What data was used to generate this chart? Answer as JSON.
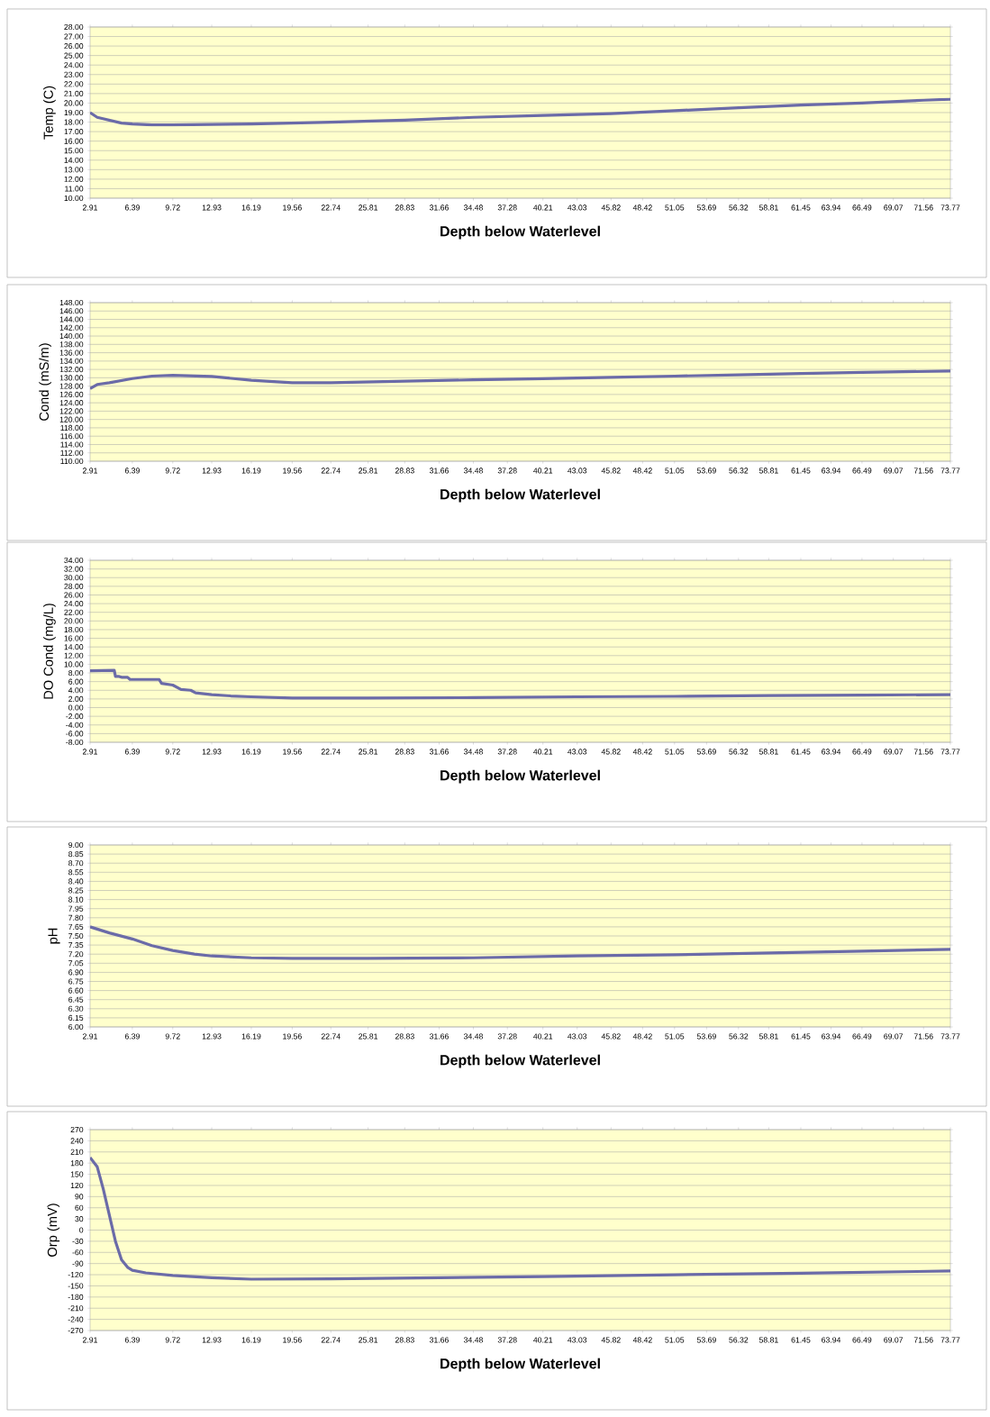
{
  "chart_data": [
    {
      "type": "line",
      "xlabel": "Depth below Waterlevel",
      "ylabel": "Temp (C)",
      "grid": "y",
      "x": [
        2.91,
        3.5,
        4.5,
        5.5,
        6.39,
        8,
        9.72,
        16.19,
        22.74,
        28.83,
        34.48,
        40.21,
        45.82,
        51.05,
        56.32,
        61.45,
        66.49,
        71.56,
        73.77
      ],
      "series": [
        {
          "color": "#6b6ba8",
          "values": [
            19.0,
            18.5,
            18.2,
            17.9,
            17.8,
            17.7,
            17.7,
            17.8,
            18.0,
            18.2,
            18.5,
            18.7,
            18.9,
            19.2,
            19.5,
            19.8,
            20.0,
            20.3,
            20.4
          ]
        }
      ],
      "xlim": [
        2.91,
        73.77
      ],
      "xticks": [
        2.91,
        6.39,
        9.72,
        12.93,
        16.19,
        19.56,
        22.74,
        25.81,
        28.83,
        31.66,
        34.48,
        37.28,
        40.21,
        43.03,
        45.82,
        48.42,
        51.05,
        53.69,
        56.32,
        58.81,
        61.45,
        63.94,
        66.49,
        69.07,
        71.56,
        73.77
      ],
      "ylim": [
        10,
        28
      ],
      "yticks": [
        {
          "value": 10,
          "label": "10.00"
        },
        {
          "value": 11,
          "label": "11.00"
        },
        {
          "value": 12,
          "label": "12.00"
        },
        {
          "value": 13,
          "label": "13.00"
        },
        {
          "value": 14,
          "label": "14.00"
        },
        {
          "value": 15,
          "label": "15.00"
        },
        {
          "value": 16,
          "label": "16.00"
        },
        {
          "value": 17,
          "label": "17.00"
        },
        {
          "value": 18,
          "label": "18.00"
        },
        {
          "value": 19,
          "label": "19.00"
        },
        {
          "value": 20,
          "label": "20.00"
        },
        {
          "value": 21,
          "label": "21.00"
        },
        {
          "value": 22,
          "label": "22.00"
        },
        {
          "value": 23,
          "label": "23.00"
        },
        {
          "value": 24,
          "label": "24.00"
        },
        {
          "value": 25,
          "label": "25.00"
        },
        {
          "value": 26,
          "label": "26.00"
        },
        {
          "value": 27,
          "label": "27.00"
        },
        {
          "value": 28,
          "label": "28.00"
        }
      ]
    },
    {
      "type": "line",
      "xlabel": "Depth below Waterlevel",
      "ylabel": "Cond (mS/m)",
      "grid": "y",
      "x": [
        2.91,
        3.5,
        4.5,
        6.39,
        8,
        9.72,
        12.93,
        16.19,
        19.56,
        22.74,
        28.83,
        34.48,
        40.21,
        45.82,
        51.05,
        56.32,
        61.45,
        66.49,
        73.77
      ],
      "series": [
        {
          "color": "#6b6ba8",
          "values": [
            127.4,
            128.4,
            128.8,
            129.8,
            130.4,
            130.6,
            130.3,
            129.4,
            128.8,
            128.8,
            129.2,
            129.5,
            129.8,
            130.1,
            130.4,
            130.7,
            131.0,
            131.3,
            131.6
          ]
        }
      ],
      "xlim": [
        2.91,
        73.77
      ],
      "xticks": [
        2.91,
        6.39,
        9.72,
        12.93,
        16.19,
        19.56,
        22.74,
        25.81,
        28.83,
        31.66,
        34.48,
        37.28,
        40.21,
        43.03,
        45.82,
        48.42,
        51.05,
        53.69,
        56.32,
        58.81,
        61.45,
        63.94,
        66.49,
        69.07,
        71.56,
        73.77
      ],
      "ylim": [
        110,
        148
      ],
      "yticks": [
        {
          "value": 110,
          "label": "110.00"
        },
        {
          "value": 112,
          "label": "112.00"
        },
        {
          "value": 114,
          "label": "114.00"
        },
        {
          "value": 116,
          "label": "116.00"
        },
        {
          "value": 118,
          "label": "118.00"
        },
        {
          "value": 120,
          "label": "120.00"
        },
        {
          "value": 122,
          "label": "122.00"
        },
        {
          "value": 124,
          "label": "124.00"
        },
        {
          "value": 126,
          "label": "126.00"
        },
        {
          "value": 128,
          "label": "128.00"
        },
        {
          "value": 130,
          "label": "130.00"
        },
        {
          "value": 132,
          "label": "132.00"
        },
        {
          "value": 134,
          "label": "134.00"
        },
        {
          "value": 136,
          "label": "136.00"
        },
        {
          "value": 138,
          "label": "138.00"
        },
        {
          "value": 140,
          "label": "140.00"
        },
        {
          "value": 142,
          "label": "142.00"
        },
        {
          "value": 144,
          "label": "144.00"
        },
        {
          "value": 146,
          "label": "146.00"
        },
        {
          "value": 148,
          "label": "148.00"
        }
      ]
    },
    {
      "type": "line",
      "xlabel": "Depth below Waterlevel",
      "ylabel": "DO Cond (mg/L)",
      "grid": "y",
      "x": [
        2.91,
        4.9,
        5.0,
        5.3,
        5.5,
        6.0,
        6.2,
        8.6,
        8.8,
        9.72,
        10.4,
        11.2,
        11.6,
        12.93,
        14.5,
        16.19,
        19.56,
        25.81,
        34.48,
        43.03,
        51.05,
        58.81,
        66.49,
        73.77
      ],
      "series": [
        {
          "color": "#6b6ba8",
          "values": [
            8.5,
            8.6,
            7.2,
            7.2,
            7.0,
            7.0,
            6.5,
            6.5,
            5.6,
            5.2,
            4.2,
            4.0,
            3.4,
            3.0,
            2.7,
            2.5,
            2.2,
            2.2,
            2.3,
            2.5,
            2.6,
            2.8,
            2.9,
            3.0
          ]
        }
      ],
      "xlim": [
        2.91,
        73.77
      ],
      "xticks": [
        2.91,
        6.39,
        9.72,
        12.93,
        16.19,
        19.56,
        22.74,
        25.81,
        28.83,
        31.66,
        34.48,
        37.28,
        40.21,
        43.03,
        45.82,
        48.42,
        51.05,
        53.69,
        56.32,
        58.81,
        61.45,
        63.94,
        66.49,
        69.07,
        71.56,
        73.77
      ],
      "ylim": [
        -8,
        34
      ],
      "yticks": [
        {
          "value": -8,
          "label": "-8.00"
        },
        {
          "value": -6,
          "label": "-6.00"
        },
        {
          "value": -4,
          "label": "-4.00"
        },
        {
          "value": -2,
          "label": "-2.00"
        },
        {
          "value": 0,
          "label": "0.00"
        },
        {
          "value": 2,
          "label": "2.00"
        },
        {
          "value": 4,
          "label": "4.00"
        },
        {
          "value": 6,
          "label": "6.00"
        },
        {
          "value": 8,
          "label": "8.00"
        },
        {
          "value": 10,
          "label": "10.00"
        },
        {
          "value": 12,
          "label": "12.00"
        },
        {
          "value": 14,
          "label": "14.00"
        },
        {
          "value": 16,
          "label": "16.00"
        },
        {
          "value": 18,
          "label": "18.00"
        },
        {
          "value": 20,
          "label": "20.00"
        },
        {
          "value": 22,
          "label": "22.00"
        },
        {
          "value": 24,
          "label": "24.00"
        },
        {
          "value": 26,
          "label": "26.00"
        },
        {
          "value": 28,
          "label": "28.00"
        },
        {
          "value": 30,
          "label": "30.00"
        },
        {
          "value": 32,
          "label": "32.00"
        },
        {
          "value": 34,
          "label": "34.00"
        }
      ]
    },
    {
      "type": "line",
      "xlabel": "Depth below Waterlevel",
      "ylabel": "pH",
      "grid": "y",
      "x": [
        2.91,
        4.5,
        6.39,
        8,
        9.72,
        11.5,
        12.93,
        16.19,
        19.56,
        25.81,
        34.48,
        43.03,
        51.05,
        58.81,
        66.49,
        73.77
      ],
      "series": [
        {
          "color": "#6b6ba8",
          "values": [
            7.65,
            7.55,
            7.45,
            7.34,
            7.26,
            7.2,
            7.17,
            7.14,
            7.13,
            7.13,
            7.14,
            7.17,
            7.19,
            7.22,
            7.25,
            7.28
          ]
        }
      ],
      "xlim": [
        2.91,
        73.77
      ],
      "xticks": [
        2.91,
        6.39,
        9.72,
        12.93,
        16.19,
        19.56,
        22.74,
        25.81,
        28.83,
        31.66,
        34.48,
        37.28,
        40.21,
        43.03,
        45.82,
        48.42,
        51.05,
        53.69,
        56.32,
        58.81,
        61.45,
        63.94,
        66.49,
        69.07,
        71.56,
        73.77
      ],
      "ylim": [
        6,
        9
      ],
      "yticks": [
        {
          "value": 6,
          "label": "6.00"
        },
        {
          "value": 6.15,
          "label": "6.15"
        },
        {
          "value": 6.3,
          "label": "6.30"
        },
        {
          "value": 6.45,
          "label": "6.45"
        },
        {
          "value": 6.6,
          "label": "6.60"
        },
        {
          "value": 6.75,
          "label": "6.75"
        },
        {
          "value": 6.9,
          "label": "6.90"
        },
        {
          "value": 7.05,
          "label": "7.05"
        },
        {
          "value": 7.2,
          "label": "7.20"
        },
        {
          "value": 7.35,
          "label": "7.35"
        },
        {
          "value": 7.5,
          "label": "7.50"
        },
        {
          "value": 7.65,
          "label": "7.65"
        },
        {
          "value": 7.8,
          "label": "7.80"
        },
        {
          "value": 7.95,
          "label": "7.95"
        },
        {
          "value": 8.1,
          "label": "8.10"
        },
        {
          "value": 8.25,
          "label": "8.25"
        },
        {
          "value": 8.4,
          "label": "8.40"
        },
        {
          "value": 8.55,
          "label": "8.55"
        },
        {
          "value": 8.7,
          "label": "8.70"
        },
        {
          "value": 8.85,
          "label": "8.85"
        },
        {
          "value": 9,
          "label": "9.00"
        }
      ]
    },
    {
      "type": "line",
      "xlabel": "Depth below Waterlevel",
      "ylabel": "Orp (mV)",
      "grid": "y",
      "x": [
        2.91,
        3.5,
        4.0,
        4.5,
        5.0,
        5.5,
        6.0,
        6.39,
        7.5,
        9.72,
        12.93,
        16.19,
        22.74,
        31.66,
        40.21,
        51.05,
        61.45,
        73.77
      ],
      "series": [
        {
          "color": "#6b6ba8",
          "values": [
            195,
            170,
            110,
            40,
            -30,
            -80,
            -100,
            -108,
            -115,
            -122,
            -128,
            -132,
            -131,
            -128,
            -125,
            -120,
            -116,
            -110
          ]
        }
      ],
      "xlim": [
        2.91,
        73.77
      ],
      "xticks": [
        2.91,
        6.39,
        9.72,
        12.93,
        16.19,
        19.56,
        22.74,
        25.81,
        28.83,
        31.66,
        34.48,
        37.28,
        40.21,
        43.03,
        45.82,
        48.42,
        51.05,
        53.69,
        56.32,
        58.81,
        61.45,
        63.94,
        66.49,
        69.07,
        71.56,
        73.77
      ],
      "ylim": [
        -270,
        270
      ],
      "yticks": [
        -270,
        -240,
        -210,
        -180,
        -150,
        -120,
        -90,
        -60,
        -30,
        0,
        30,
        60,
        90,
        120,
        150,
        180,
        210,
        240,
        270
      ]
    }
  ]
}
